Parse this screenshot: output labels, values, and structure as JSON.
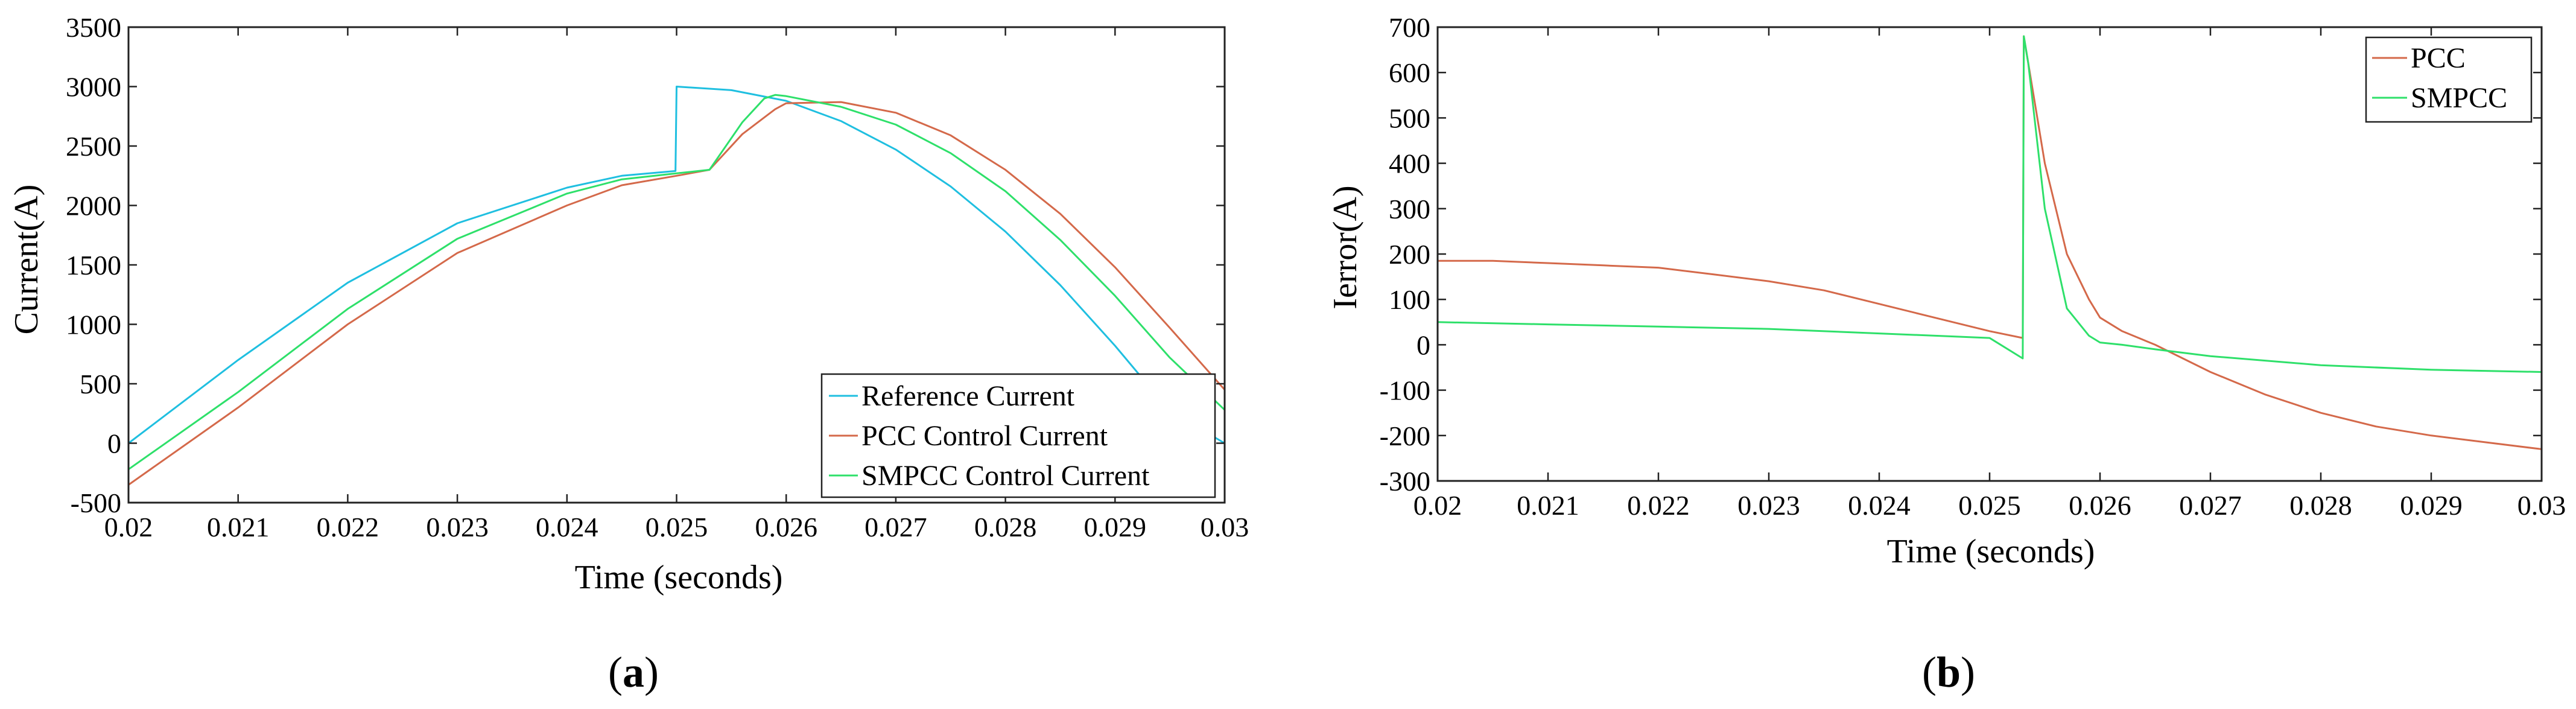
{
  "figure": {
    "panel_labels": [
      {
        "open": "(",
        "letter": "a",
        "close": ")"
      },
      {
        "open": "(",
        "letter": "b",
        "close": ")"
      }
    ]
  },
  "chart_data": [
    {
      "type": "line",
      "panel": "a",
      "xlabel": "Time (seconds)",
      "ylabel": "Current(A)",
      "xlim": [
        0.02,
        0.03
      ],
      "ylim": [
        -500,
        3500
      ],
      "xticks": [
        0.02,
        0.021,
        0.022,
        0.023,
        0.024,
        0.025,
        0.026,
        0.027,
        0.028,
        0.029,
        0.03
      ],
      "xtick_labels": [
        "0.02",
        "0.021",
        "0.022",
        "0.023",
        "0.024",
        "0.025",
        "0.026",
        "0.027",
        "0.028",
        "0.029",
        "0.03"
      ],
      "yticks": [
        -500,
        0,
        500,
        1000,
        1500,
        2000,
        2500,
        3000,
        3500
      ],
      "ytick_labels": [
        "-500",
        "0",
        "500",
        "1000",
        "1500",
        "2000",
        "2500",
        "3000",
        "3500"
      ],
      "grid": false,
      "legend": "bottom-right",
      "series": [
        {
          "name": "Reference Current",
          "color": "#1fbfe0",
          "x": [
            0.02,
            0.021,
            0.022,
            0.023,
            0.024,
            0.0245,
            0.02499,
            0.025,
            0.0255,
            0.026,
            0.0265,
            0.027,
            0.0275,
            0.028,
            0.0285,
            0.029,
            0.0295,
            0.03
          ],
          "y": [
            0,
            700,
            1350,
            1850,
            2150,
            2250,
            2290,
            3000,
            2970,
            2880,
            2710,
            2470,
            2160,
            1780,
            1330,
            820,
            270,
            0
          ]
        },
        {
          "name": "PCC Control Current",
          "color": "#d4694a",
          "x": [
            0.02,
            0.021,
            0.022,
            0.023,
            0.024,
            0.0245,
            0.025,
            0.0253,
            0.0256,
            0.0259,
            0.026,
            0.0265,
            0.027,
            0.0275,
            0.028,
            0.0285,
            0.029,
            0.0295,
            0.03
          ],
          "y": [
            -350,
            300,
            1000,
            1600,
            2000,
            2170,
            2250,
            2300,
            2600,
            2810,
            2860,
            2870,
            2780,
            2590,
            2300,
            1930,
            1480,
            970,
            450
          ]
        },
        {
          "name": "SMPCC Control Current",
          "color": "#2ee06a",
          "x": [
            0.02,
            0.021,
            0.022,
            0.023,
            0.024,
            0.0245,
            0.025,
            0.0253,
            0.0256,
            0.0258,
            0.0259,
            0.026,
            0.0265,
            0.027,
            0.0275,
            0.028,
            0.0285,
            0.029,
            0.0295,
            0.03
          ],
          "y": [
            -220,
            430,
            1130,
            1720,
            2100,
            2220,
            2270,
            2300,
            2700,
            2900,
            2930,
            2920,
            2830,
            2680,
            2440,
            2120,
            1710,
            1240,
            720,
            280
          ]
        }
      ]
    },
    {
      "type": "line",
      "panel": "b",
      "xlabel": "Time (seconds)",
      "ylabel": "Ierror(A)",
      "xlim": [
        0.02,
        0.03
      ],
      "ylim": [
        -300,
        700
      ],
      "xticks": [
        0.02,
        0.021,
        0.022,
        0.023,
        0.024,
        0.025,
        0.026,
        0.027,
        0.028,
        0.029,
        0.03
      ],
      "xtick_labels": [
        "0.02",
        "0.021",
        "0.022",
        "0.023",
        "0.024",
        "0.025",
        "0.026",
        "0.027",
        "0.028",
        "0.029",
        "0.03"
      ],
      "yticks": [
        -300,
        -200,
        -100,
        0,
        100,
        200,
        300,
        400,
        500,
        600,
        700
      ],
      "ytick_labels": [
        "-300",
        "-200",
        "-100",
        "0",
        "100",
        "200",
        "300",
        "400",
        "500",
        "600",
        "700"
      ],
      "grid": false,
      "legend": "top-right",
      "series": [
        {
          "name": "PCC",
          "color": "#d4694a",
          "x": [
            0.02,
            0.0205,
            0.021,
            0.0215,
            0.022,
            0.0225,
            0.023,
            0.0235,
            0.024,
            0.0245,
            0.025,
            0.0253,
            0.02531,
            0.0255,
            0.0257,
            0.0259,
            0.026,
            0.0262,
            0.0265,
            0.027,
            0.0275,
            0.028,
            0.0285,
            0.029,
            0.0295,
            0.03
          ],
          "y": [
            185,
            185,
            180,
            175,
            170,
            155,
            140,
            120,
            90,
            60,
            30,
            15,
            680,
            400,
            200,
            100,
            60,
            30,
            0,
            -60,
            -110,
            -150,
            -180,
            -200,
            -215,
            -230
          ]
        },
        {
          "name": "SMPCC",
          "color": "#2ee06a",
          "x": [
            0.02,
            0.021,
            0.022,
            0.023,
            0.024,
            0.025,
            0.0253,
            0.02531,
            0.02535,
            0.0255,
            0.0257,
            0.0259,
            0.026,
            0.0262,
            0.0265,
            0.027,
            0.028,
            0.029,
            0.03
          ],
          "y": [
            50,
            45,
            40,
            35,
            25,
            15,
            -30,
            680,
            620,
            300,
            80,
            20,
            5,
            0,
            -10,
            -25,
            -45,
            -55,
            -60
          ]
        }
      ]
    }
  ]
}
